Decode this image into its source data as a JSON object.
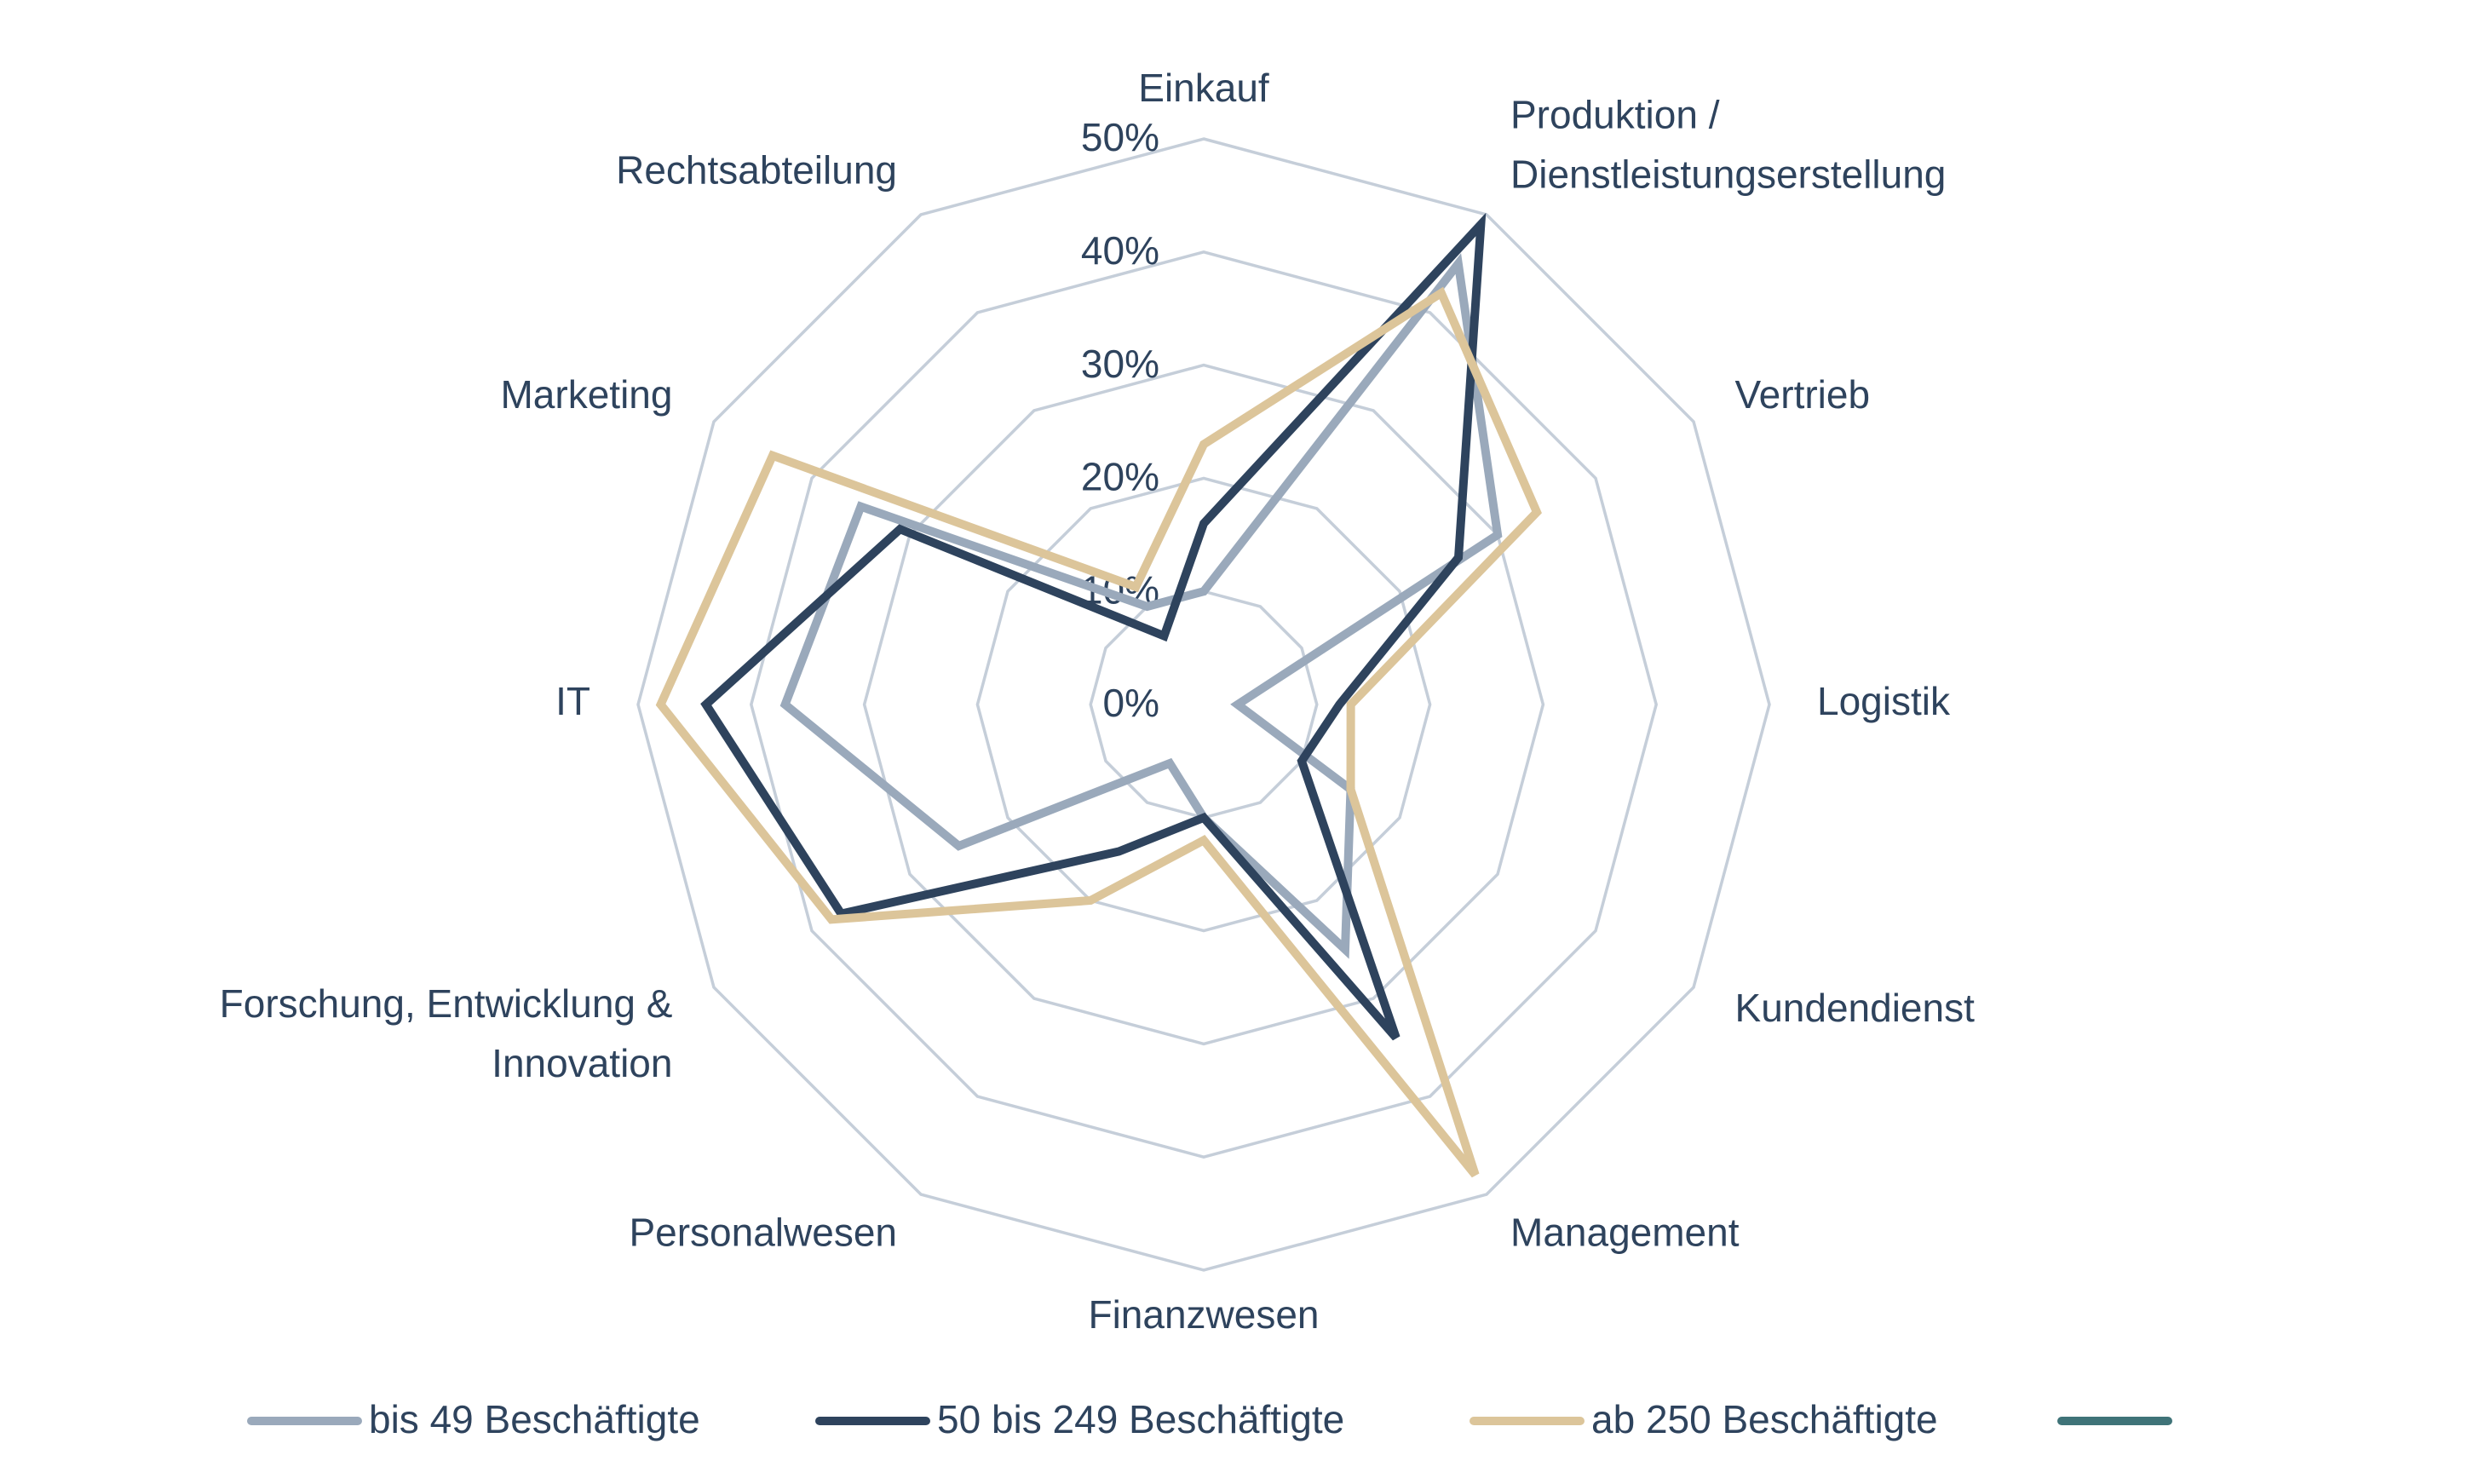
{
  "chart_data": {
    "type": "radar",
    "categories": [
      "Einkauf",
      "Produktion /\nDienstleistungserstellung",
      "Vertrieb",
      "Logistik",
      "Kundendienst",
      "Management",
      "Finanzwesen",
      "Personalwesen",
      "Forschung, Entwicklung &\nInnovation",
      "IT",
      "Marketing",
      "Rechtsabteilung"
    ],
    "series": [
      {
        "name": "bis 49 Beschäftigte",
        "color": "#9aa9bb",
        "values": [
          10,
          45,
          30,
          3,
          15,
          25,
          10,
          6,
          25,
          37,
          35,
          10
        ]
      },
      {
        "name": "50 bis 249 Beschäftigte",
        "color": "#2e435d",
        "values": [
          16,
          49,
          26,
          12,
          10,
          34,
          10,
          15,
          37,
          44,
          31,
          7
        ]
      },
      {
        "name": "ab 250 Beschäftigte",
        "color": "#dcc59a",
        "values": [
          23,
          42,
          34,
          13,
          15,
          48,
          12,
          20,
          38,
          48,
          44,
          12
        ]
      }
    ],
    "ylim": [
      0,
      50
    ],
    "yticks": [
      {
        "value": 0,
        "label": "0%"
      },
      {
        "value": 10,
        "label": "10%"
      },
      {
        "value": 20,
        "label": "20%"
      },
      {
        "value": 30,
        "label": "30%"
      },
      {
        "value": 40,
        "label": "40%"
      },
      {
        "value": 50,
        "label": "50%"
      }
    ],
    "grid": true,
    "legend": "bottom"
  }
}
